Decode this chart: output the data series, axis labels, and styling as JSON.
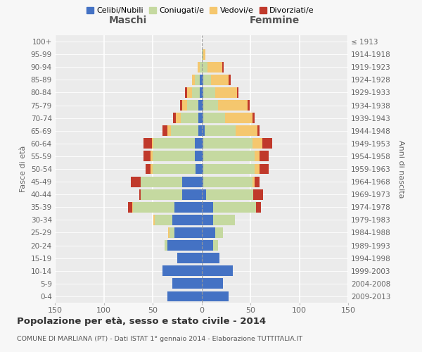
{
  "age_groups": [
    "0-4",
    "5-9",
    "10-14",
    "15-19",
    "20-24",
    "25-29",
    "30-34",
    "35-39",
    "40-44",
    "45-49",
    "50-54",
    "55-59",
    "60-64",
    "65-69",
    "70-74",
    "75-79",
    "80-84",
    "85-89",
    "90-94",
    "95-99",
    "100+"
  ],
  "birth_years": [
    "2009-2013",
    "2004-2008",
    "1999-2003",
    "1994-1998",
    "1989-1993",
    "1984-1988",
    "1979-1983",
    "1974-1978",
    "1969-1973",
    "1964-1968",
    "1959-1963",
    "1954-1958",
    "1949-1953",
    "1944-1948",
    "1939-1943",
    "1934-1938",
    "1929-1933",
    "1924-1928",
    "1919-1923",
    "1914-1918",
    "≤ 1913"
  ],
  "maschi": {
    "celibi": [
      35,
      30,
      40,
      25,
      35,
      28,
      30,
      28,
      20,
      20,
      6,
      7,
      7,
      3,
      3,
      3,
      2,
      2,
      0,
      0,
      0
    ],
    "coniugati": [
      0,
      0,
      0,
      0,
      3,
      5,
      18,
      42,
      42,
      42,
      44,
      43,
      42,
      28,
      18,
      12,
      8,
      5,
      2,
      0,
      0
    ],
    "vedovi": [
      0,
      0,
      0,
      0,
      0,
      1,
      1,
      1,
      0,
      0,
      2,
      2,
      2,
      4,
      5,
      5,
      5,
      3,
      2,
      0,
      0
    ],
    "divorziati": [
      0,
      0,
      0,
      0,
      0,
      0,
      0,
      4,
      2,
      10,
      5,
      7,
      8,
      5,
      3,
      2,
      2,
      0,
      0,
      0,
      0
    ]
  },
  "femmine": {
    "nubili": [
      28,
      22,
      32,
      18,
      12,
      14,
      12,
      12,
      5,
      2,
      2,
      2,
      2,
      3,
      2,
      2,
      2,
      2,
      0,
      0,
      0
    ],
    "coniugate": [
      0,
      0,
      0,
      0,
      5,
      8,
      22,
      44,
      48,
      50,
      52,
      52,
      50,
      32,
      22,
      15,
      12,
      8,
      6,
      2,
      0
    ],
    "vedove": [
      0,
      0,
      0,
      0,
      0,
      0,
      0,
      0,
      0,
      2,
      5,
      5,
      10,
      22,
      28,
      30,
      22,
      18,
      15,
      2,
      0
    ],
    "divorziate": [
      0,
      0,
      0,
      0,
      0,
      0,
      0,
      5,
      10,
      5,
      10,
      10,
      10,
      2,
      2,
      2,
      2,
      2,
      2,
      0,
      0
    ]
  },
  "colors": {
    "celibi": "#4472c4",
    "coniugati": "#c5d9a0",
    "vedovi": "#f5c76e",
    "divorziati": "#c0392b"
  },
  "xlim": 150,
  "title": "Popolazione per età, sesso e stato civile - 2014",
  "subtitle": "COMUNE DI MARLIANA (PT) - Dati ISTAT 1° gennaio 2014 - Elaborazione TUTTITALIA.IT",
  "ylabel_left": "Fasce di età",
  "ylabel_right": "Anni di nascita",
  "label_maschi": "Maschi",
  "label_femmine": "Femmine",
  "legend": [
    "Celibi/Nubili",
    "Coniugati/e",
    "Vedovi/e",
    "Divorziati/e"
  ],
  "bar_height": 0.82
}
